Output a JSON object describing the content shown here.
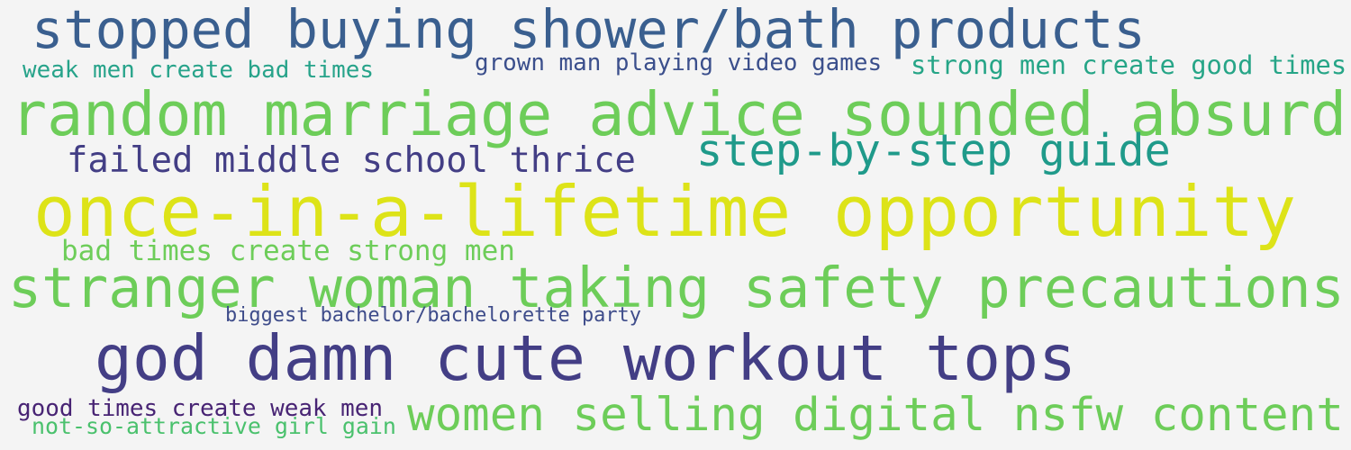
{
  "background_color": "#f4f4f4",
  "words": [
    {
      "text": "stopped buying shower/bath products",
      "color": "#3a5f8f"
    },
    {
      "text": "weak men create bad times",
      "color": "#27a38a"
    },
    {
      "text": "grown man playing video games",
      "color": "#3b4f8c"
    },
    {
      "text": "strong men create good times",
      "color": "#26a587"
    },
    {
      "text": "random marriage advice sounded absurd",
      "color": "#6dcd59"
    },
    {
      "text": "failed middle school thrice",
      "color": "#433e85"
    },
    {
      "text": "step-by-step guide",
      "color": "#1f9a8a"
    },
    {
      "text": "once-in-a-lifetime opportunity",
      "color": "#dde318"
    },
    {
      "text": "bad times create strong men",
      "color": "#6dcd59"
    },
    {
      "text": "stranger woman taking safety precautions",
      "color": "#6dcd59"
    },
    {
      "text": "biggest bachelor/bachelorette party",
      "color": "#3e4c8a"
    },
    {
      "text": "god damn cute workout tops",
      "color": "#433e85"
    },
    {
      "text": "good times create weak men",
      "color": "#482474"
    },
    {
      "text": "not-so-attractive girl gain",
      "color": "#4ac16d"
    },
    {
      "text": "women selling digital nsfw content",
      "color": "#6dcd59"
    }
  ]
}
